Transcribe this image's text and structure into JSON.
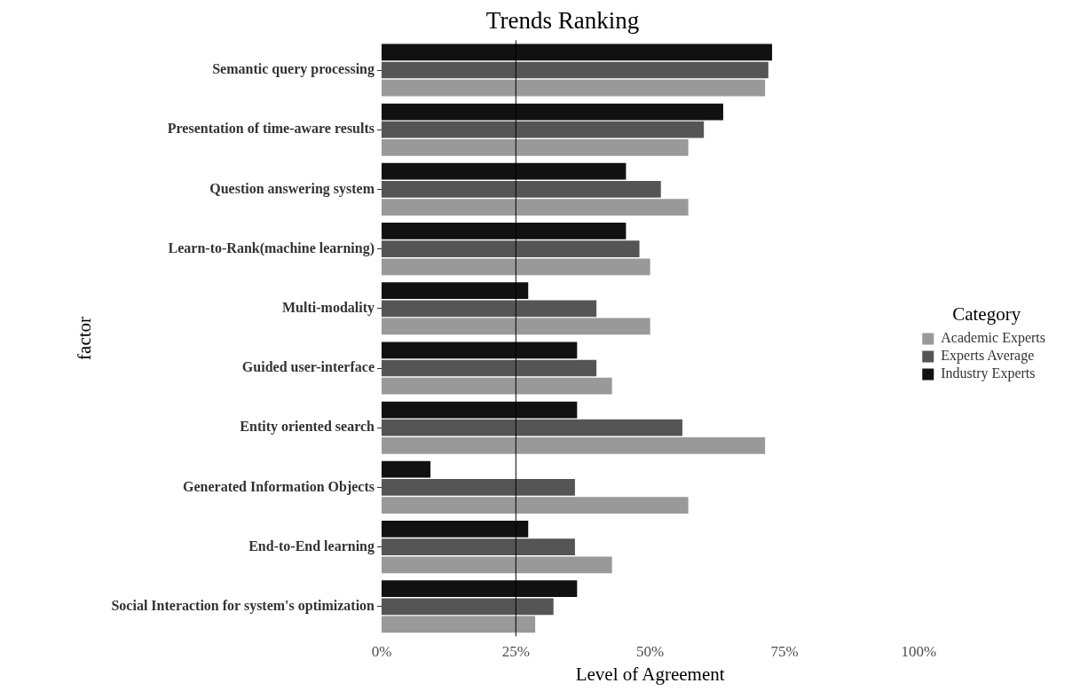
{
  "chart_data": {
    "type": "bar",
    "orientation": "horizontal",
    "title": "Trends Ranking",
    "xlabel": "Level of Agreement",
    "ylabel": "factor",
    "legend_title": "Category",
    "legend": "right",
    "categories": [
      "Semantic query processing",
      "Presentation of time-aware results",
      "Question answering system",
      "Learn-to-Rank(machine learning)",
      "Multi-modality",
      "Guided user-interface",
      "Entity oriented search",
      "Generated Information Objects",
      "End-to-End learning",
      "Social Interaction for system's optimization"
    ],
    "series": [
      {
        "name": "Academic Experts",
        "color": "#999999",
        "values": [
          71.4,
          57.1,
          57.1,
          50,
          50,
          42.9,
          71.4,
          57.1,
          42.9,
          28.6
        ]
      },
      {
        "name": "Experts Average",
        "color": "#555555",
        "values": [
          72,
          60,
          52,
          48,
          40,
          40,
          56,
          36,
          36,
          32
        ]
      },
      {
        "name": "Industry Experts",
        "color": "#111111",
        "values": [
          72.7,
          63.6,
          45.5,
          45.5,
          27.3,
          36.4,
          36.4,
          9.1,
          27.3,
          36.4
        ]
      }
    ],
    "xlim": [
      0,
      100
    ],
    "xticks": [
      {
        "value": 0,
        "label": "0%"
      },
      {
        "value": 25,
        "label": "25%"
      },
      {
        "value": 50,
        "label": "50%"
      },
      {
        "value": 75,
        "label": "75%"
      },
      {
        "value": 100,
        "label": "100%"
      }
    ],
    "ref_lines": [
      {
        "axis": "x",
        "value": 25,
        "color": "#000000"
      }
    ],
    "grid": false
  }
}
